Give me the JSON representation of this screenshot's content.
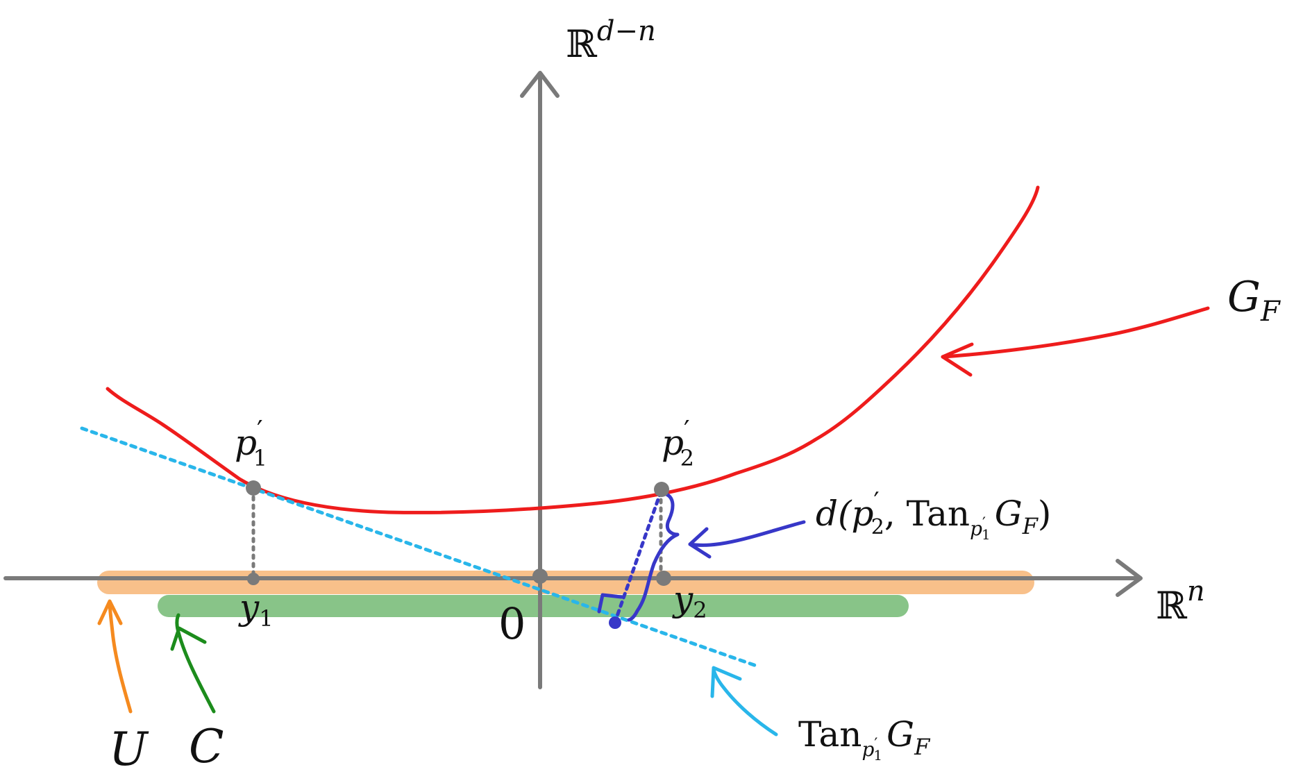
{
  "axes": {
    "vertical_label_base": "ℝ",
    "vertical_label_exp": "d−n",
    "horizontal_label_base": "ℝ",
    "horizontal_label_exp": "n",
    "origin_label": "0"
  },
  "points": {
    "p1_base": "p",
    "p1_prime": "′",
    "p1_sub": "1",
    "p2_base": "p",
    "p2_prime": "′",
    "p2_sub": "2",
    "y1_base": "y",
    "y1_sub": "1",
    "y2_base": "y",
    "y2_sub": "2"
  },
  "labels": {
    "graph_base": "G",
    "graph_sub": "F",
    "set_u": "U",
    "set_c": "C",
    "distance_d": "d(",
    "distance_p": "p",
    "distance_prime": "′",
    "distance_p_sub": "2",
    "distance_comma": ", ",
    "tan": "Tan",
    "tan_sub_p": "p",
    "tan_sub_prime": "′",
    "tan_sub_1": "1",
    "distance_g": "G",
    "distance_g_sub": "F",
    "distance_close": ")",
    "tangent_tan": "Tan",
    "tangent_sub_p": "p",
    "tangent_sub_prime": "′",
    "tangent_sub_1": "1",
    "tangent_g": "G",
    "tangent_g_sub": "F"
  },
  "colors": {
    "axis": "#7a7a7a",
    "graph": "#ee1c1c",
    "tangent": "#29b6ea",
    "distance": "#3737c8",
    "set_u": "#f8c08a",
    "set_u_arrow": "#f58a1f",
    "set_c": "#88c488",
    "set_c_arrow": "#1c8c1c",
    "points": "#7a7a7a"
  }
}
